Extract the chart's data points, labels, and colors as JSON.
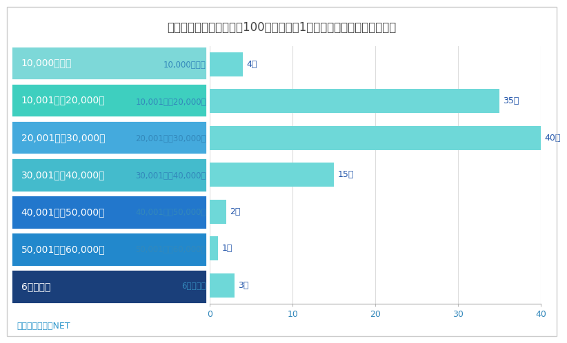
{
  "title": "図表：風俗店に通う男性100人に、風俗1回に使う金額を調査した結果",
  "categories": [
    "10,000円以下",
    "10,001円～20,000円",
    "20,001円～30,000円",
    "30,001円～40,000円",
    "40,001円～50,000円",
    "50,001円～60,000円",
    "6万円以上"
  ],
  "values": [
    4,
    35,
    40,
    15,
    2,
    1,
    3
  ],
  "labels": [
    "4人",
    "35人",
    "40人",
    "15人",
    "2人",
    "1人",
    "3人"
  ],
  "bar_color": "#6ED8D8",
  "legend_colors": [
    "#7DD8D8",
    "#3ECFBF",
    "#44AADD",
    "#44BBCC",
    "#2277CC",
    "#2288CC",
    "#1A3F7A"
  ],
  "source": "出所：風俗広告NET",
  "xlim": [
    0,
    40
  ],
  "xticks": [
    0,
    10,
    20,
    30,
    40
  ],
  "background_color": "#FFFFFF",
  "title_color": "#444444",
  "title_fontsize": 12,
  "source_color": "#3399CC",
  "source_fontsize": 9,
  "tick_label_color": "#3388BB",
  "value_label_color": "#2255AA",
  "legend_text_color": "#FFFFFF"
}
